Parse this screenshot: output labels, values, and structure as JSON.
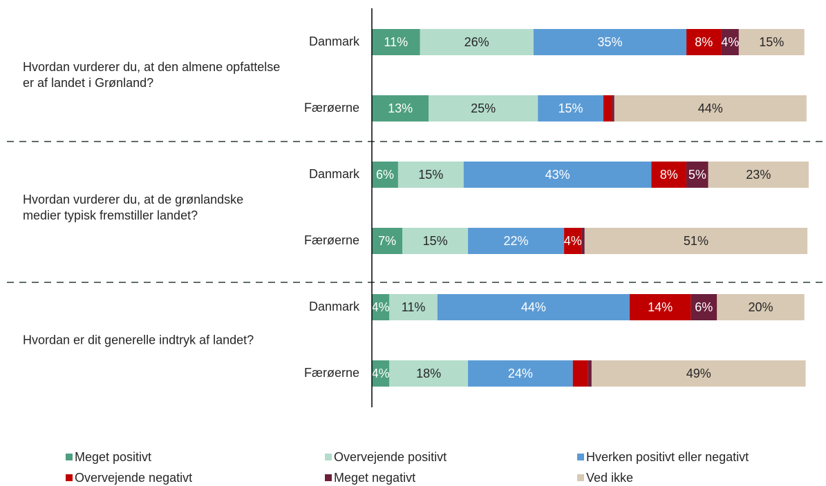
{
  "chart_data": {
    "type": "stacked-bar-horizontal",
    "groups": [
      "Hvordan vurderer du, at den almene opfattelse er af landet i Grønland?",
      "Hvordan vurderer du, at de grønlandske medier typisk fremstiller landet?",
      "Hvordan er dit generelle indtryk af landet?"
    ],
    "categories": [
      "Danmark",
      "Færøerne",
      "Danmark",
      "Færøerne",
      "Danmark",
      "Færøerne"
    ],
    "xlim": [
      0,
      100
    ],
    "series": [
      {
        "name": "Meget positivt",
        "color": "#4e9f7f",
        "label_color": "#ffffff",
        "values": [
          11,
          13,
          6,
          7,
          4,
          4
        ],
        "value_labels": [
          "11%",
          "13%",
          "6%",
          "7%",
          "4%",
          "4%"
        ]
      },
      {
        "name": "Overvejende positivt",
        "color": "#b3dccb",
        "label_color": "#262626",
        "values": [
          26,
          25,
          15,
          15,
          11,
          18
        ],
        "value_labels": [
          "26%",
          "25%",
          "15%",
          "15%",
          "11%",
          "18%"
        ]
      },
      {
        "name": "Hverken positivt eller negativt",
        "color": "#5b9bd5",
        "label_color": "#ffffff",
        "values": [
          35,
          15,
          43,
          22,
          44,
          24
        ],
        "value_labels": [
          "35%",
          "15%",
          "43%",
          "22%",
          "44%",
          "24%"
        ]
      },
      {
        "name": "Overvejende negativt",
        "color": "#c00000",
        "label_color": "#ffffff",
        "values": [
          8,
          2,
          8,
          4,
          14,
          3.5
        ],
        "value_labels": [
          "8%",
          null,
          "8%",
          "4%",
          "14%",
          null
        ]
      },
      {
        "name": "Meget negativt",
        "color": "#6b1f3a",
        "label_color": "#ffffff",
        "values": [
          4,
          0.5,
          5,
          0.7,
          6,
          0.8
        ],
        "value_labels": [
          "4%",
          null,
          "5%",
          null,
          "6%",
          null
        ]
      },
      {
        "name": "Ved ikke",
        "color": "#d8c9b4",
        "label_color": "#262626",
        "values": [
          15,
          44,
          23,
          51,
          20,
          49
        ],
        "value_labels": [
          "15%",
          "44%",
          "23%",
          "51%",
          "20%",
          "49%"
        ]
      }
    ]
  }
}
